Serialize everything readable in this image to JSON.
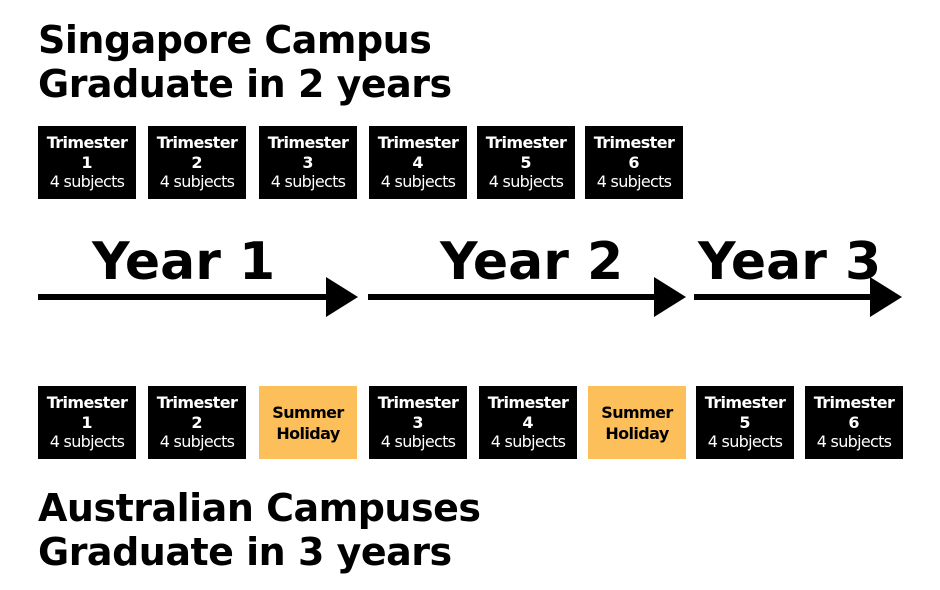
{
  "singapore": {
    "title_line1": "Singapore Campus",
    "title_line2": "Graduate in 2 years",
    "blocks": [
      {
        "type": "trimester",
        "label": "Trimester",
        "number": "1",
        "subjects": "4 subjects"
      },
      {
        "type": "trimester",
        "label": "Trimester",
        "number": "2",
        "subjects": "4 subjects"
      },
      {
        "type": "trimester",
        "label": "Trimester",
        "number": "3",
        "subjects": "4 subjects"
      },
      {
        "type": "trimester",
        "label": "Trimester",
        "number": "4",
        "subjects": "4 subjects"
      },
      {
        "type": "trimester",
        "label": "Trimester",
        "number": "5",
        "subjects": "4 subjects"
      },
      {
        "type": "trimester",
        "label": "Trimester",
        "number": "6",
        "subjects": "4 subjects"
      }
    ]
  },
  "years": [
    "Year 1",
    "Year 2",
    "Year 3"
  ],
  "australia": {
    "title_line1": "Australian Campuses",
    "title_line2": "Graduate in 3 years",
    "blocks": [
      {
        "type": "trimester",
        "label": "Trimester",
        "number": "1",
        "subjects": "4 subjects"
      },
      {
        "type": "trimester",
        "label": "Trimester",
        "number": "2",
        "subjects": "4 subjects"
      },
      {
        "type": "holiday",
        "line1": "Summer",
        "line2": "Holiday"
      },
      {
        "type": "trimester",
        "label": "Trimester",
        "number": "3",
        "subjects": "4 subjects"
      },
      {
        "type": "trimester",
        "label": "Trimester",
        "number": "4",
        "subjects": "4 subjects"
      },
      {
        "type": "holiday",
        "line1": "Summer",
        "line2": "Holiday"
      },
      {
        "type": "trimester",
        "label": "Trimester",
        "number": "5",
        "subjects": "4 subjects"
      },
      {
        "type": "trimester",
        "label": "Trimester",
        "number": "6",
        "subjects": "4 subjects"
      }
    ]
  },
  "colors": {
    "trimester_bg": "#000000",
    "trimester_text": "#ffffff",
    "holiday_bg": "#fcbf5a",
    "holiday_text": "#000000",
    "arrow": "#000000"
  }
}
